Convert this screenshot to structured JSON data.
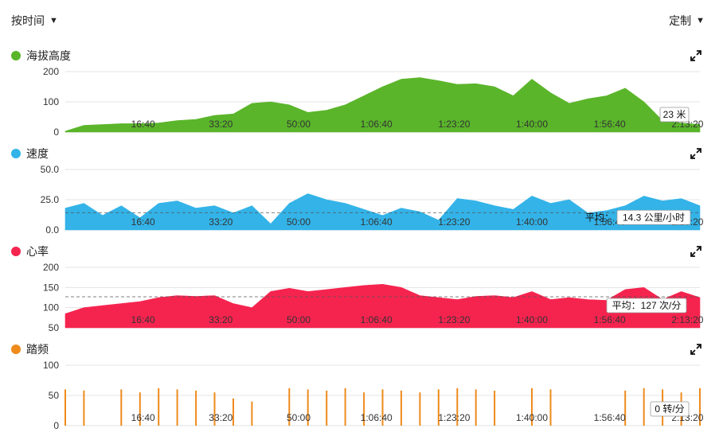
{
  "header": {
    "left_dropdown": "按时间",
    "right_dropdown": "定制"
  },
  "x_ticks": [
    "16:40",
    "33:20",
    "50:00",
    "1:06:40",
    "1:23:20",
    "1:40:00",
    "1:56:40",
    "2:13:20"
  ],
  "panels": [
    {
      "title": "海拔高度",
      "color": "#5ab52a",
      "y_ticks": [
        "200",
        "100",
        "0"
      ],
      "callout": "23 米"
    },
    {
      "title": "速度",
      "color": "#33b3e8",
      "y_ticks": [
        "50.0",
        "25.0",
        "0.0"
      ],
      "avg_label": "平均：",
      "callout": "14.3 公里/小时"
    },
    {
      "title": "心率",
      "color": "#f5244f",
      "y_ticks": [
        "200",
        "150",
        "100",
        "50"
      ],
      "callout": "平均：127 次/分"
    },
    {
      "title": "踏频",
      "color": "#ef8a1c",
      "y_ticks": [
        "100",
        "50",
        "0"
      ],
      "callout": "0 转/分"
    }
  ],
  "chart_data": [
    {
      "type": "area",
      "title": "海拔高度",
      "x_unit": "seconds",
      "ylim": [
        0,
        200
      ],
      "x": [
        0,
        240,
        480,
        720,
        960,
        1200,
        1440,
        1680,
        1920,
        2160,
        2400,
        2640,
        2880,
        3120,
        3360,
        3600,
        3840,
        4080,
        4320,
        4560,
        4800,
        5040,
        5280,
        5520,
        5760,
        6000,
        6240,
        6480,
        6720,
        6960,
        7200,
        7440,
        7680,
        7920,
        8160
      ],
      "values": [
        3,
        22,
        25,
        28,
        28,
        30,
        38,
        42,
        55,
        60,
        95,
        100,
        90,
        65,
        72,
        90,
        120,
        150,
        175,
        180,
        170,
        158,
        160,
        150,
        120,
        175,
        130,
        95,
        110,
        120,
        145,
        100,
        38,
        30,
        25
      ],
      "callout": "23 米"
    },
    {
      "type": "area",
      "title": "速度",
      "x_unit": "seconds",
      "ylim": [
        0,
        50
      ],
      "average": 14.3,
      "x": [
        0,
        240,
        480,
        720,
        960,
        1200,
        1440,
        1680,
        1920,
        2160,
        2400,
        2640,
        2880,
        3120,
        3360,
        3600,
        3840,
        4080,
        4320,
        4560,
        4800,
        5040,
        5280,
        5520,
        5760,
        6000,
        6240,
        6480,
        6720,
        6960,
        7200,
        7440,
        7680,
        7920,
        8160
      ],
      "values": [
        18,
        22,
        12,
        20,
        10,
        22,
        24,
        18,
        20,
        14,
        20,
        5,
        22,
        30,
        25,
        22,
        17,
        12,
        18,
        15,
        8,
        26,
        24,
        20,
        17,
        28,
        22,
        25,
        14,
        16,
        20,
        28,
        24,
        26,
        20
      ],
      "callout": "14.3 公里/小时"
    },
    {
      "type": "area",
      "title": "心率",
      "x_unit": "seconds",
      "ylim": [
        50,
        200
      ],
      "average": 127,
      "x": [
        0,
        240,
        480,
        720,
        960,
        1200,
        1440,
        1680,
        1920,
        2160,
        2400,
        2640,
        2880,
        3120,
        3360,
        3600,
        3840,
        4080,
        4320,
        4560,
        4800,
        5040,
        5280,
        5520,
        5760,
        6000,
        6240,
        6480,
        6720,
        6960,
        7200,
        7440,
        7680,
        7920,
        8160
      ],
      "values": [
        85,
        100,
        105,
        110,
        115,
        125,
        130,
        128,
        130,
        110,
        100,
        140,
        148,
        140,
        145,
        150,
        155,
        158,
        150,
        130,
        125,
        120,
        128,
        130,
        125,
        140,
        120,
        125,
        120,
        118,
        145,
        150,
        120,
        140,
        125
      ],
      "callout": "平均：127 次/分"
    },
    {
      "type": "area",
      "title": "踏频",
      "x_unit": "seconds",
      "ylim": [
        0,
        100
      ],
      "peak": 62,
      "x": [
        0,
        240,
        480,
        720,
        960,
        1200,
        1440,
        1680,
        1920,
        2160,
        2400,
        2640,
        2880,
        3120,
        3360,
        3600,
        3840,
        4080,
        4320,
        4560,
        4800,
        5040,
        5280,
        5520,
        5760,
        6000,
        6240,
        6480,
        6720,
        6960,
        7200,
        7440,
        7680,
        7920,
        8160
      ],
      "values": [
        60,
        58,
        0,
        60,
        55,
        62,
        60,
        58,
        55,
        45,
        40,
        0,
        62,
        60,
        58,
        62,
        55,
        60,
        58,
        55,
        60,
        62,
        60,
        58,
        0,
        62,
        60,
        0,
        0,
        0,
        58,
        62,
        60,
        55,
        62
      ],
      "callout": "0 转/分"
    }
  ]
}
